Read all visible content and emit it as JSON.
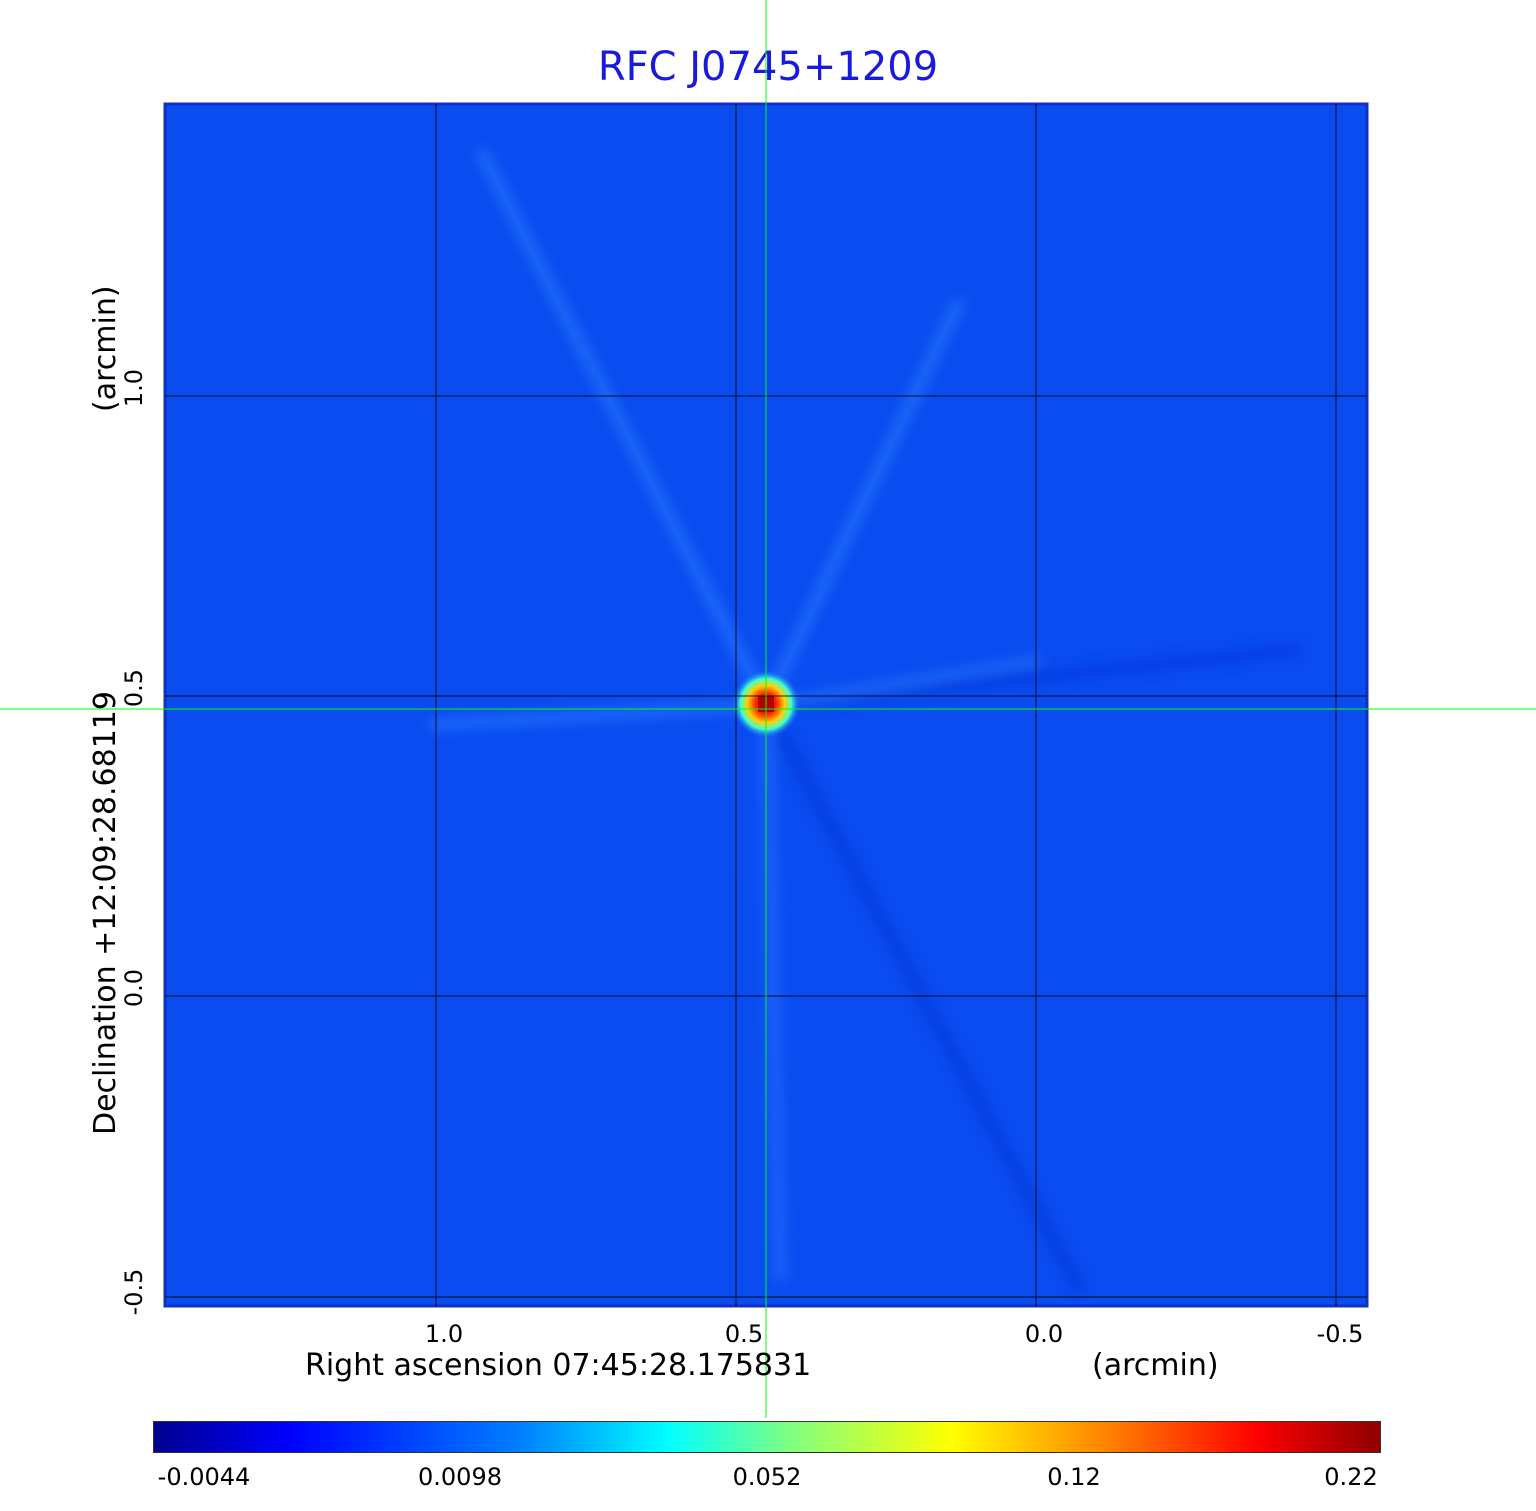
{
  "title": "RFC J0745+1209",
  "x_axis": {
    "label": "Right ascension  07:45:28.175831",
    "unit": "(arcmin)",
    "ticks": [
      "1.0",
      "0.5",
      "0.0",
      "-0.5"
    ]
  },
  "y_axis": {
    "label": "Declination  +12:09:28.68119",
    "unit": "(arcmin)",
    "ticks": [
      "1.0",
      "0.5",
      "0.0",
      "-0.5"
    ]
  },
  "colorbar": {
    "colormap": "jet",
    "ticks": [
      "-0.0044",
      "0.0098",
      "0.052",
      "0.12",
      "0.22"
    ]
  },
  "colors": {
    "title": "#1a1adf",
    "background_map": "#0a4cf0",
    "crosshair": "#00ff00",
    "grid": "#000000"
  }
}
